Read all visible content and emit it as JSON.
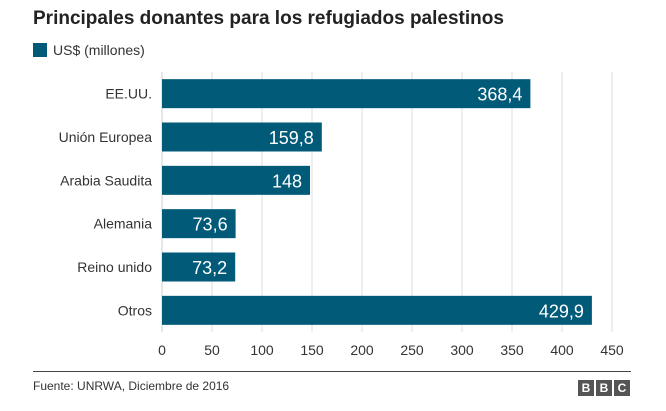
{
  "title": "Principales donantes para los refugiados palestinos",
  "legend": {
    "label": "US$ (millones)",
    "color": "#005a78"
  },
  "chart_data": {
    "type": "bar",
    "orientation": "horizontal",
    "categories": [
      "EE.UU.",
      "Unión Europea",
      "Arabia Saudita",
      "Alemania",
      "Reino unido",
      "Otros"
    ],
    "values": [
      368.4,
      159.8,
      148,
      73.6,
      73.2,
      429.9
    ],
    "value_labels": [
      "368,4",
      "159,8",
      "148",
      "73,6",
      "73,2",
      "429,9"
    ],
    "series": [
      {
        "name": "US$ (millones)",
        "values": [
          368.4,
          159.8,
          148,
          73.6,
          73.2,
          429.9
        ]
      }
    ],
    "xlim": [
      0,
      450
    ],
    "xticks": [
      0,
      50,
      100,
      150,
      200,
      250,
      300,
      350,
      400,
      450
    ],
    "grid": true,
    "bar_color": "#005a78"
  },
  "footer": {
    "source": "Fuente: UNRWA, Diciembre de 2016",
    "logo_letters": [
      "B",
      "B",
      "C"
    ]
  }
}
